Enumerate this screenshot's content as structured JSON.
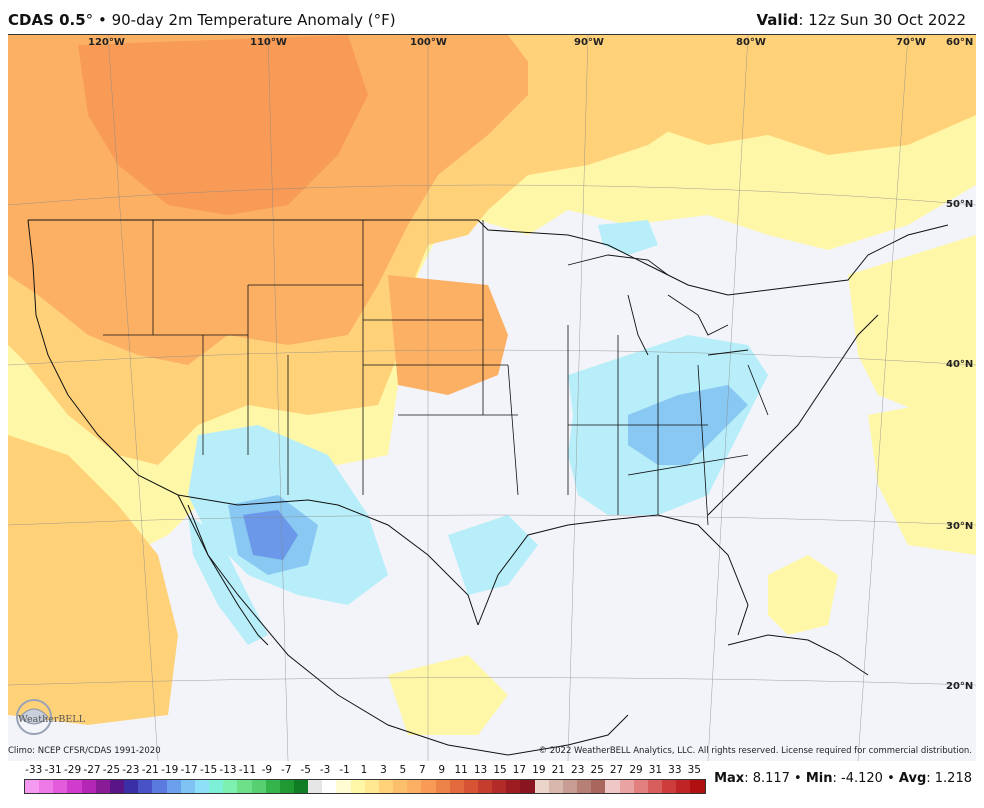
{
  "header": {
    "model": "CDAS 0.5",
    "degree_mark": "°",
    "bullet": "•",
    "product": "90-day 2m Temperature Anomaly (°F)",
    "valid_label": "Valid",
    "valid_value": ": 12z Sun 30 Oct 2022"
  },
  "map": {
    "longitudes": [
      "120°W",
      "110°W",
      "100°W",
      "90°W",
      "80°W",
      "70°W"
    ],
    "latitudes": [
      "60°N",
      "50°N",
      "40°N",
      "30°N",
      "20°N"
    ],
    "region": "Contiguous United States, southern Canada, Mexico, Caribbean",
    "colors": {
      "ocean_land_neutral": "#f2f4fa",
      "warm_light": "#fff7a8",
      "warm_mid": "#ffd27a",
      "warm_strong": "#fcb063",
      "warm_max": "#f79b56",
      "cool_light": "#b7eefa",
      "cool_mid": "#88c8f3",
      "cool_strong": "#6b98e8",
      "borders": "#111111"
    }
  },
  "footer": {
    "climo": "Climo: NCEP CFSR/CDAS 1991-2020",
    "copyright": "© 2022 WeatherBELL Analytics, LLC. All rights reserved. License required for commercial distribution.",
    "logo_text": "WeatherBELL"
  },
  "colorbar": {
    "labels": [
      "-33",
      "-31",
      "-29",
      "-27",
      "-25",
      "-23",
      "-21",
      "-19",
      "-17",
      "-15",
      "-13",
      "-11",
      "-9",
      "-7",
      "-5",
      "-3",
      "-1",
      "1",
      "3",
      "5",
      "7",
      "9",
      "11",
      "13",
      "15",
      "17",
      "19",
      "21",
      "23",
      "25",
      "27",
      "29",
      "31",
      "33",
      "35"
    ],
    "colors": [
      "#f49af0",
      "#ee7ae8",
      "#e35cdb",
      "#d03dcd",
      "#b427b4",
      "#8a1b97",
      "#5a1487",
      "#3a2fa5",
      "#4a52c8",
      "#5a7ae0",
      "#6aa0ec",
      "#7ec3f4",
      "#8ee0f8",
      "#7ff0d8",
      "#7ef0b0",
      "#6ee089",
      "#56d070",
      "#36b44c",
      "#1f9a32",
      "#0f7d24",
      "#e6e6e6",
      "#ffffff",
      "#fffbd2",
      "#fff7a8",
      "#ffe891",
      "#ffd27a",
      "#fcc06c",
      "#fcb063",
      "#f79b56",
      "#ee8347",
      "#e36a3c",
      "#d65334",
      "#c53d2d",
      "#b22b28",
      "#9d1c22",
      "#8a1420",
      "#ebd4c9",
      "#d8b8ad",
      "#c79c92",
      "#b78077",
      "#a8665d",
      "#f0c7c7",
      "#eaa3a3",
      "#e28080",
      "#d85d5d",
      "#ce3c3c",
      "#c12424",
      "#b01010"
    ]
  },
  "stats": {
    "max_label": "Max",
    "max_value": ": 8.117",
    "min_label": "Min",
    "min_value": ": -4.120",
    "avg_label": "Avg",
    "avg_value": ": 1.218",
    "sep": " • "
  }
}
